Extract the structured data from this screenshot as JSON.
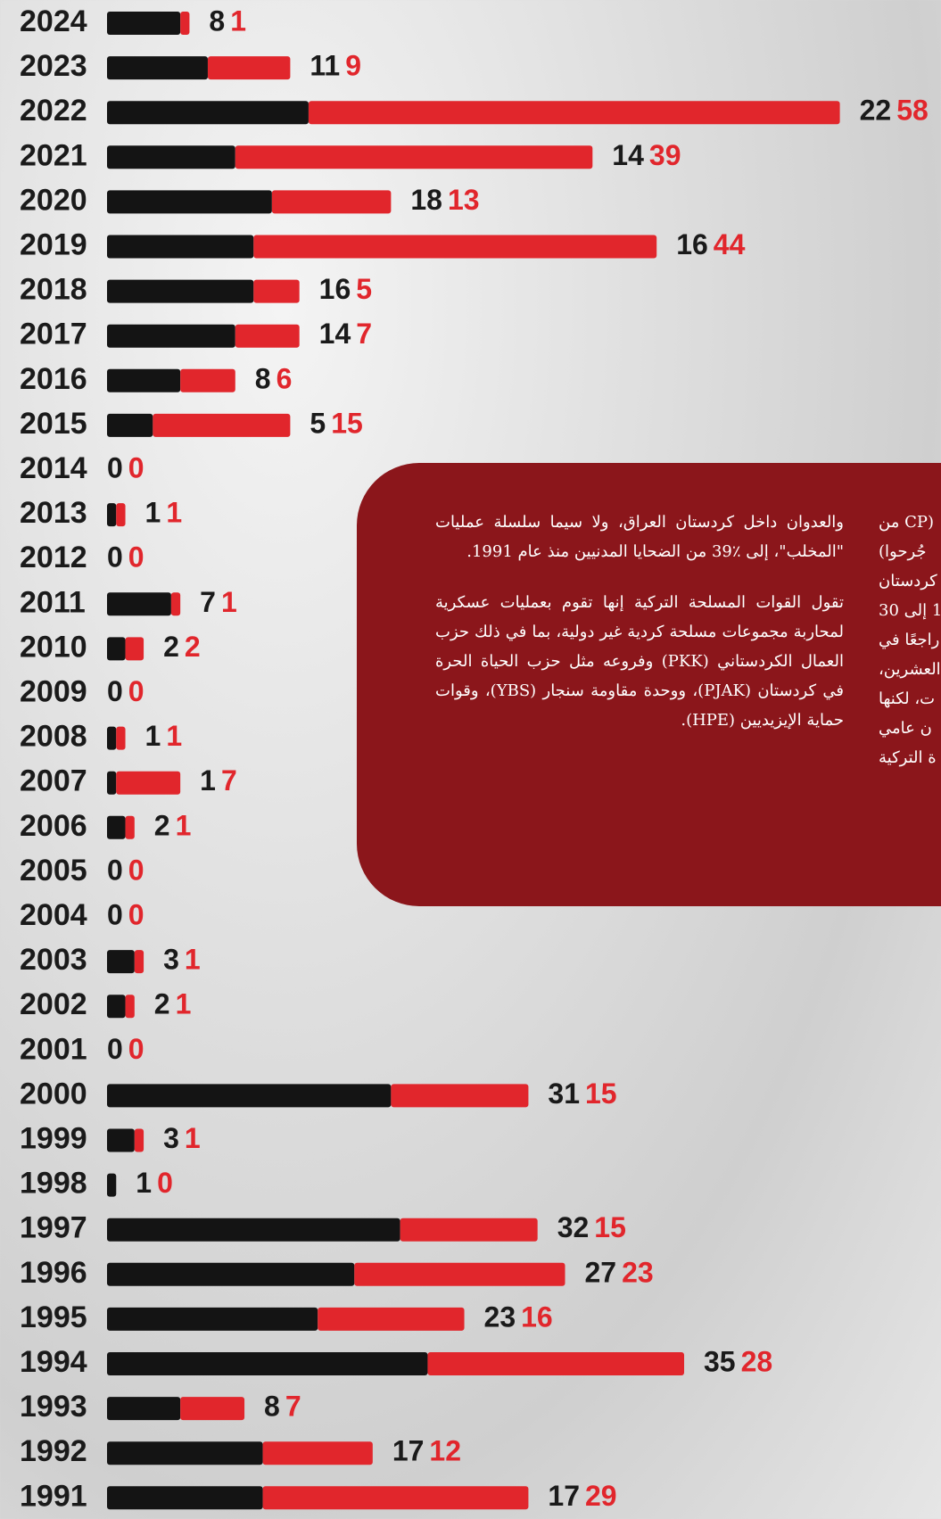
{
  "chart_data": {
    "type": "bar",
    "categories": [
      "2024",
      "2023",
      "2022",
      "2021",
      "2020",
      "2019",
      "2018",
      "2017",
      "2016",
      "2015",
      "2014",
      "2013",
      "2012",
      "2011",
      "2010",
      "2009",
      "2008",
      "2007",
      "2006",
      "2005",
      "2004",
      "2003",
      "2002",
      "2001",
      "2000",
      "1999",
      "1998",
      "1997",
      "1996",
      "1995",
      "1994",
      "1993",
      "1992",
      "1991"
    ],
    "series": [
      {
        "color": "#141414",
        "values": [
          8,
          11,
          22,
          14,
          18,
          16,
          16,
          14,
          8,
          5,
          0,
          1,
          0,
          7,
          2,
          0,
          1,
          1,
          2,
          0,
          0,
          3,
          2,
          0,
          31,
          3,
          1,
          32,
          27,
          23,
          35,
          8,
          17,
          17
        ]
      },
      {
        "color": "#e1262c",
        "values": [
          1,
          9,
          58,
          39,
          13,
          44,
          5,
          7,
          6,
          15,
          0,
          1,
          0,
          1,
          2,
          0,
          1,
          7,
          1,
          0,
          0,
          1,
          1,
          0,
          15,
          1,
          0,
          15,
          23,
          16,
          28,
          7,
          12,
          29
        ]
      }
    ]
  },
  "text_box": {
    "paragraphs": [
      "والعدوان داخل كردستان العراق، ولا سيما سلسلة عمليات \"المخلب\"، إلى ٪39 من الضحايا المدنيين منذ عام 1991.",
      "تقول القوات المسلحة التركية إنها تقوم بعمليات عسكرية لمحاربة مجموعات مسلحة كردية غير دولية، بما في ذلك حزب العمال الكردستاني (PKK) وفروعه مثل حزب الحياة الحرة في كردستان (PJAK)، ووحدة مقاومة سنجار (YBS)، وقوات حماية الإيزيديين (HPE)."
    ],
    "clipped_lines": [
      "(CP من",
      "جُرحوا)",
      "كردستان",
      "1 إلى 30",
      "راجعًا في",
      "العشرين،",
      "ت، لكنها",
      "ن عامي",
      "ة التركية"
    ]
  }
}
